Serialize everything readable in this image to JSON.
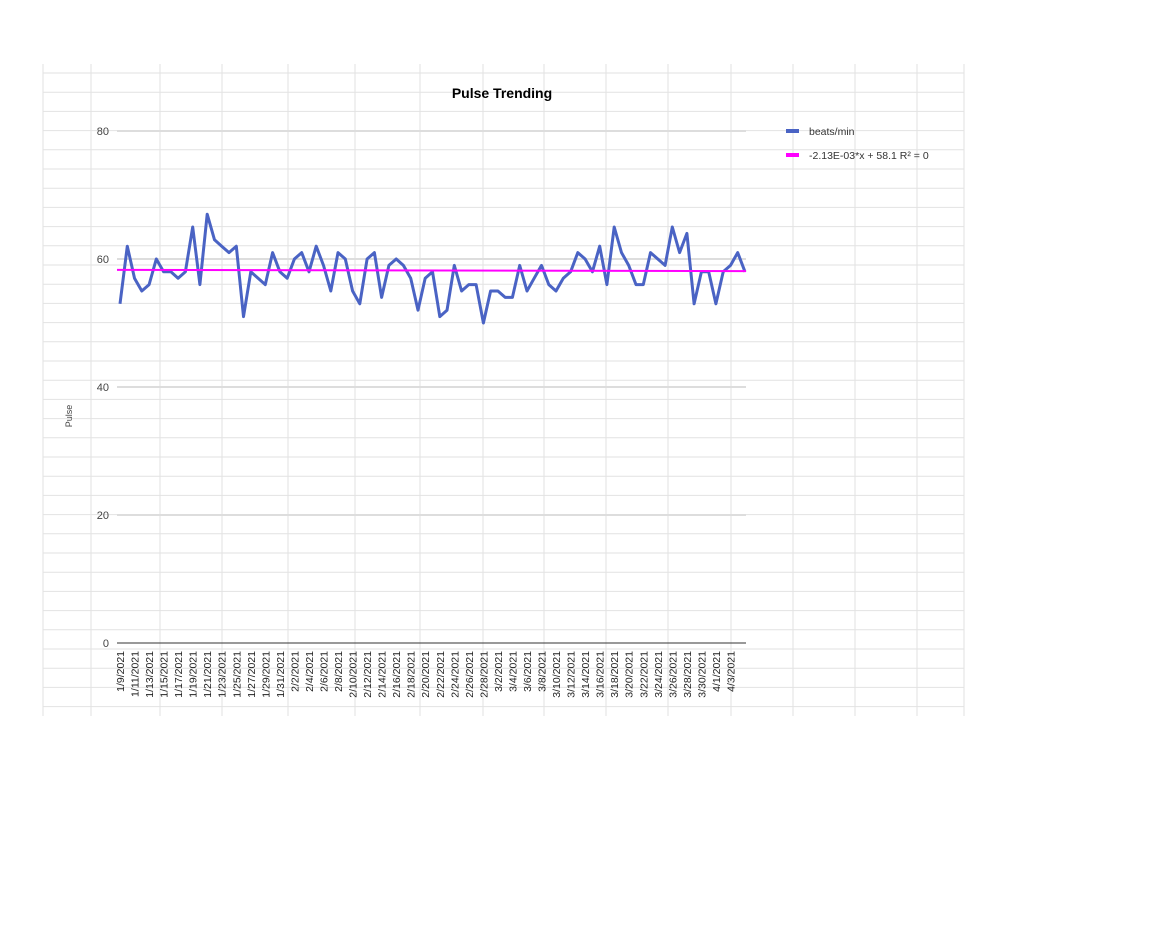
{
  "chart_data": {
    "type": "line",
    "title": "Pulse Trending",
    "xlabel": "",
    "ylabel": "Pulse",
    "ylim": [
      0,
      80
    ],
    "yticks": [
      "0",
      "20",
      "40",
      "60",
      "80"
    ],
    "grid": true,
    "legend_position": "right",
    "x": [
      "1/9/2021",
      "1/10/2021",
      "1/11/2021",
      "1/12/2021",
      "1/13/2021",
      "1/14/2021",
      "1/15/2021",
      "1/16/2021",
      "1/17/2021",
      "1/18/2021",
      "1/19/2021",
      "1/20/2021",
      "1/21/2021",
      "1/22/2021",
      "1/23/2021",
      "1/24/2021",
      "1/25/2021",
      "1/26/2021",
      "1/27/2021",
      "1/28/2021",
      "1/29/2021",
      "1/30/2021",
      "1/31/2021",
      "2/1/2021",
      "2/2/2021",
      "2/3/2021",
      "2/4/2021",
      "2/5/2021",
      "2/6/2021",
      "2/7/2021",
      "2/8/2021",
      "2/9/2021",
      "2/10/2021",
      "2/11/2021",
      "2/12/2021",
      "2/13/2021",
      "2/14/2021",
      "2/15/2021",
      "2/16/2021",
      "2/17/2021",
      "2/18/2021",
      "2/19/2021",
      "2/20/2021",
      "2/21/2021",
      "2/22/2021",
      "2/23/2021",
      "2/24/2021",
      "2/25/2021",
      "2/26/2021",
      "2/27/2021",
      "2/28/2021",
      "3/1/2021",
      "3/2/2021",
      "3/3/2021",
      "3/4/2021",
      "3/5/2021",
      "3/6/2021",
      "3/7/2021",
      "3/8/2021",
      "3/9/2021",
      "3/10/2021",
      "3/11/2021",
      "3/12/2021",
      "3/13/2021",
      "3/14/2021",
      "3/15/2021",
      "3/16/2021",
      "3/17/2021",
      "3/18/2021",
      "3/19/2021",
      "3/20/2021",
      "3/21/2021",
      "3/22/2021",
      "3/23/2021",
      "3/24/2021",
      "3/25/2021",
      "3/26/2021",
      "3/27/2021",
      "3/28/2021",
      "3/29/2021",
      "3/30/2021",
      "3/31/2021",
      "4/1/2021",
      "4/2/2021",
      "4/3/2021",
      "4/4/2021",
      "4/5/2021"
    ],
    "xtick_labels": [
      "1/9/2021",
      "1/11/2021",
      "1/13/2021",
      "1/15/2021",
      "1/17/2021",
      "1/19/2021",
      "1/21/2021",
      "1/23/2021",
      "1/25/2021",
      "1/27/2021",
      "1/29/2021",
      "1/31/2021",
      "2/2/2021",
      "2/4/2021",
      "2/6/2021",
      "2/8/2021",
      "2/10/2021",
      "2/12/2021",
      "2/14/2021",
      "2/16/2021",
      "2/18/2021",
      "2/20/2021",
      "2/22/2021",
      "2/24/2021",
      "2/26/2021",
      "2/28/2021",
      "3/2/2021",
      "3/4/2021",
      "3/6/2021",
      "3/8/2021",
      "3/10/2021",
      "3/12/2021",
      "3/14/2021",
      "3/16/2021",
      "3/18/2021",
      "3/20/2021",
      "3/22/2021",
      "3/24/2021",
      "3/26/2021",
      "3/28/2021",
      "3/30/2021",
      "4/1/2021",
      "4/3/2021"
    ],
    "series": [
      {
        "name": "beats/min",
        "color": "#4a63c4",
        "values": [
          53,
          62,
          57,
          55,
          56,
          60,
          58,
          58,
          57,
          58,
          65,
          56,
          67,
          63,
          62,
          61,
          62,
          51,
          58,
          57,
          56,
          61,
          58,
          57,
          60,
          61,
          58,
          62,
          59,
          55,
          61,
          60,
          55,
          53,
          60,
          61,
          54,
          59,
          60,
          59,
          57,
          52,
          57,
          58,
          51,
          52,
          59,
          55,
          56,
          56,
          50,
          55,
          55,
          54,
          54,
          59,
          55,
          57,
          59,
          56,
          55,
          57,
          58,
          61,
          60,
          58,
          62,
          56,
          65,
          61,
          59,
          56,
          56,
          61,
          60,
          59,
          65,
          61,
          64,
          53,
          58,
          58,
          53,
          58,
          59,
          61,
          58
        ]
      },
      {
        "name": "-2.13E-03*x + 58.1 R² = 0",
        "color": "#ff00ff",
        "trendline": {
          "start": 58.3,
          "end": 58.1
        }
      }
    ]
  }
}
